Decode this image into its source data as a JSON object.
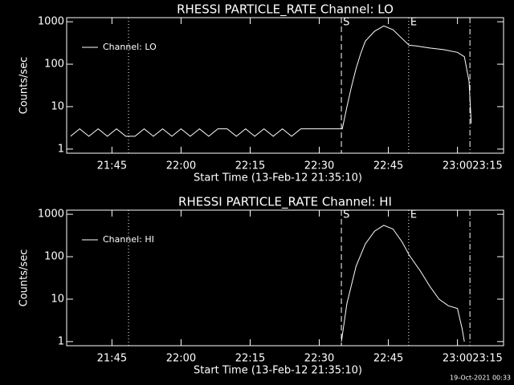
{
  "chart_data": [
    {
      "type": "line",
      "title": "RHESSI PARTICLE_RATE Channel: LO",
      "xlabel": "Start Time (13-Feb-12 21:35:10)",
      "ylabel": "Counts/sec",
      "log_y": true,
      "xlim": [
        1295.17,
        1390
      ],
      "ylim": [
        0.8,
        1250
      ],
      "yticks": [
        1,
        10,
        100,
        1000
      ],
      "xticks": [
        {
          "value": 1305,
          "label": "21:45"
        },
        {
          "value": 1320,
          "label": "22:00"
        },
        {
          "value": 1335,
          "label": "22:15"
        },
        {
          "value": 1350,
          "label": "22:30"
        },
        {
          "value": 1365,
          "label": "22:45"
        },
        {
          "value": 1380,
          "label": "23:00"
        },
        {
          "value": 1395,
          "label": "23:15"
        }
      ],
      "legend": "upper left",
      "vlines": [
        {
          "x": 1308.6,
          "dash": "dotted"
        },
        {
          "x": 1354.8,
          "dash": "dashed",
          "label": "S"
        },
        {
          "x": 1369.4,
          "dash": "dotted",
          "label": "E"
        },
        {
          "x": 1382.7,
          "dash": "dashdot"
        }
      ],
      "series": [
        {
          "name": "Channel: LO",
          "color": "#ffffff",
          "x": [
            1296,
            1298,
            1300,
            1302,
            1304,
            1306,
            1308,
            1310,
            1312,
            1314,
            1316,
            1318,
            1320,
            1322,
            1324,
            1326,
            1328,
            1330,
            1332,
            1334,
            1336,
            1338,
            1340,
            1342,
            1344,
            1346,
            1348,
            1350,
            1352,
            1354,
            1355,
            1356,
            1357,
            1358,
            1359,
            1360,
            1362,
            1364,
            1366,
            1368,
            1369.5,
            1371,
            1374,
            1377,
            1380,
            1381.5,
            1382.5,
            1383
          ],
          "values": [
            2,
            3,
            2,
            3,
            2,
            3,
            2,
            2,
            3,
            2,
            3,
            2,
            3,
            2,
            3,
            2,
            3,
            3,
            2,
            3,
            2,
            3,
            2,
            3,
            2,
            3,
            3,
            3,
            3,
            3,
            3,
            10,
            30,
            80,
            180,
            350,
            600,
            800,
            650,
            400,
            280,
            270,
            240,
            220,
            190,
            150,
            40,
            4
          ]
        }
      ]
    },
    {
      "type": "line",
      "title": "RHESSI PARTICLE_RATE Channel: HI",
      "xlabel": "Start Time (13-Feb-12 21:35:10)",
      "ylabel": "Counts/sec",
      "log_y": true,
      "xlim": [
        1295.17,
        1390
      ],
      "ylim": [
        0.8,
        1250
      ],
      "yticks": [
        1,
        10,
        100,
        1000
      ],
      "xticks": [
        {
          "value": 1305,
          "label": "21:45"
        },
        {
          "value": 1320,
          "label": "22:00"
        },
        {
          "value": 1335,
          "label": "22:15"
        },
        {
          "value": 1350,
          "label": "22:30"
        },
        {
          "value": 1365,
          "label": "22:45"
        },
        {
          "value": 1380,
          "label": "23:00"
        },
        {
          "value": 1395,
          "label": "23:15"
        }
      ],
      "legend": "upper left",
      "vlines": [
        {
          "x": 1308.6,
          "dash": "dotted"
        },
        {
          "x": 1354.8,
          "dash": "dashed",
          "label": "S"
        },
        {
          "x": 1369.4,
          "dash": "dotted",
          "label": "E"
        },
        {
          "x": 1382.7,
          "dash": "dashdot"
        }
      ],
      "series": [
        {
          "name": "Channel: HI",
          "color": "#ffffff",
          "x": [
            1354.8,
            1356,
            1358,
            1360,
            1362,
            1364,
            1366,
            1368,
            1369.5,
            1372,
            1374,
            1376,
            1378,
            1380,
            1381,
            1381.5
          ],
          "values": [
            1,
            8,
            60,
            200,
            400,
            550,
            450,
            220,
            110,
            45,
            20,
            10,
            7,
            6,
            2,
            1
          ]
        }
      ]
    }
  ],
  "footer": "19-Oct-2021 00:33"
}
